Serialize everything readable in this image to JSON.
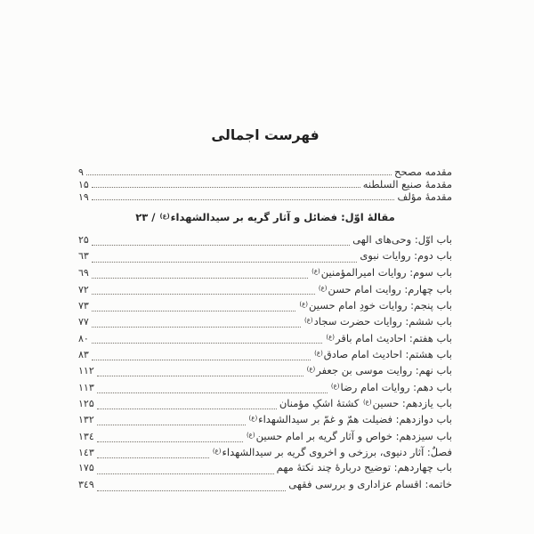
{
  "page": {
    "title": "فهرست اجمالی",
    "honorific_symbol": "(ع)",
    "text_color": "#2f2f2f",
    "background": "#fcfcfb",
    "leader_dot_color": "#757068"
  },
  "toc": {
    "front_matter": [
      {
        "title": "مقدمه مصحح",
        "page": "۹"
      },
      {
        "title": "مقدمۀ صنیع السلطنه",
        "page": "۱۵"
      },
      {
        "title": "مقدمۀ مؤلف",
        "page": "۱۹"
      }
    ],
    "section_heading": {
      "text": "مقالۀ اوّل: فضائل و آثار گریه بر سیدالشهداء",
      "honorific": true,
      "separator": " / ",
      "page": "۲۳"
    },
    "chapters": [
      {
        "title": "باب اوّل: وحی‌های الهی",
        "page": "۲۵"
      },
      {
        "title": "باب دوم: روایات نبوی",
        "page": "٦۳"
      },
      {
        "title": "باب سوم: روایات امیرالمؤمنین",
        "honorific": true,
        "page": "٦۹"
      },
      {
        "title": "باب چهارم: روایت امام حسن",
        "honorific": true,
        "page": "۷۲"
      },
      {
        "title": "باب پنجم: روایات خودِ امام حسین",
        "honorific": true,
        "page": "۷۳"
      },
      {
        "title": "باب ششم: روایات حضرت سجاد",
        "honorific": true,
        "page": "۷۷"
      },
      {
        "title": "باب هفتم: احادیث امام باقر",
        "honorific": true,
        "page": "۸۰"
      },
      {
        "title": "باب هشتم: احادیث امام صادق",
        "honorific": true,
        "page": "۸۳"
      },
      {
        "title": "باب نهم: روایت موسی بن جعفر",
        "honorific": true,
        "page": "۱۱۲"
      },
      {
        "title": "باب دهم: روایات امام رضا",
        "honorific": true,
        "page": "۱۱۳"
      },
      {
        "title": "باب یازدهم: حسین",
        "honorific": true,
        "title_after": "کشتۀ اشکِ مؤمنان",
        "page": "۱۲۵"
      },
      {
        "title": "باب دوازدهم: فضیلت همّ و غمّ بر سیدالشهداء",
        "honorific": true,
        "page": "۱۳۲"
      },
      {
        "title": "باب سیزدهم: خواص و آثار گریه بر امام حسین",
        "honorific": true,
        "page": "۱۳٤"
      },
      {
        "title": "فصلٌ: آثار دنیوی، برزخی و اخروی گریه بر سیدالشهداء",
        "honorific": true,
        "page": "۱٤۳"
      },
      {
        "title": "باب چهاردهم: توضیح دربارۀ چند نکتۀ مهم",
        "page": "۱۷۵"
      },
      {
        "title": "خاتمه: اقسام عزاداری و بررسی فقهی",
        "page": "۳٤۹"
      }
    ]
  }
}
